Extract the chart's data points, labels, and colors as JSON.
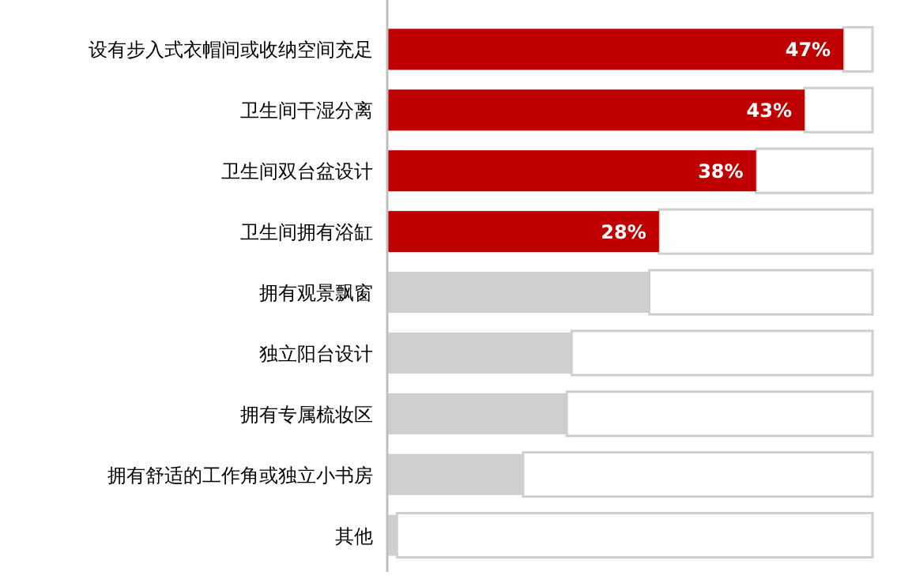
{
  "chart_data": {
    "type": "bar",
    "orientation": "horizontal",
    "categories": [
      "设有步入式衣帽间或收纳空间充足",
      "卫生间干湿分离",
      "卫生间双台盆设计",
      "卫生间拥有浴缸",
      "拥有观景飘窗",
      "独立阳台设计",
      "拥有专属梳妆区",
      "拥有舒适的工作角或独立小书房",
      "其他"
    ],
    "values": [
      47,
      43,
      38,
      28,
      27,
      19,
      18.5,
      14,
      1
    ],
    "value_labels": [
      "47%",
      "43%",
      "38%",
      "28%",
      null,
      null,
      null,
      null,
      null
    ],
    "colors": [
      "#c00000",
      "#c00000",
      "#c00000",
      "#c00000",
      "#d0cece",
      "#d0cece",
      "#d0cece",
      "#d0cece",
      "#d0cece"
    ],
    "xlim": [
      0,
      50
    ]
  }
}
